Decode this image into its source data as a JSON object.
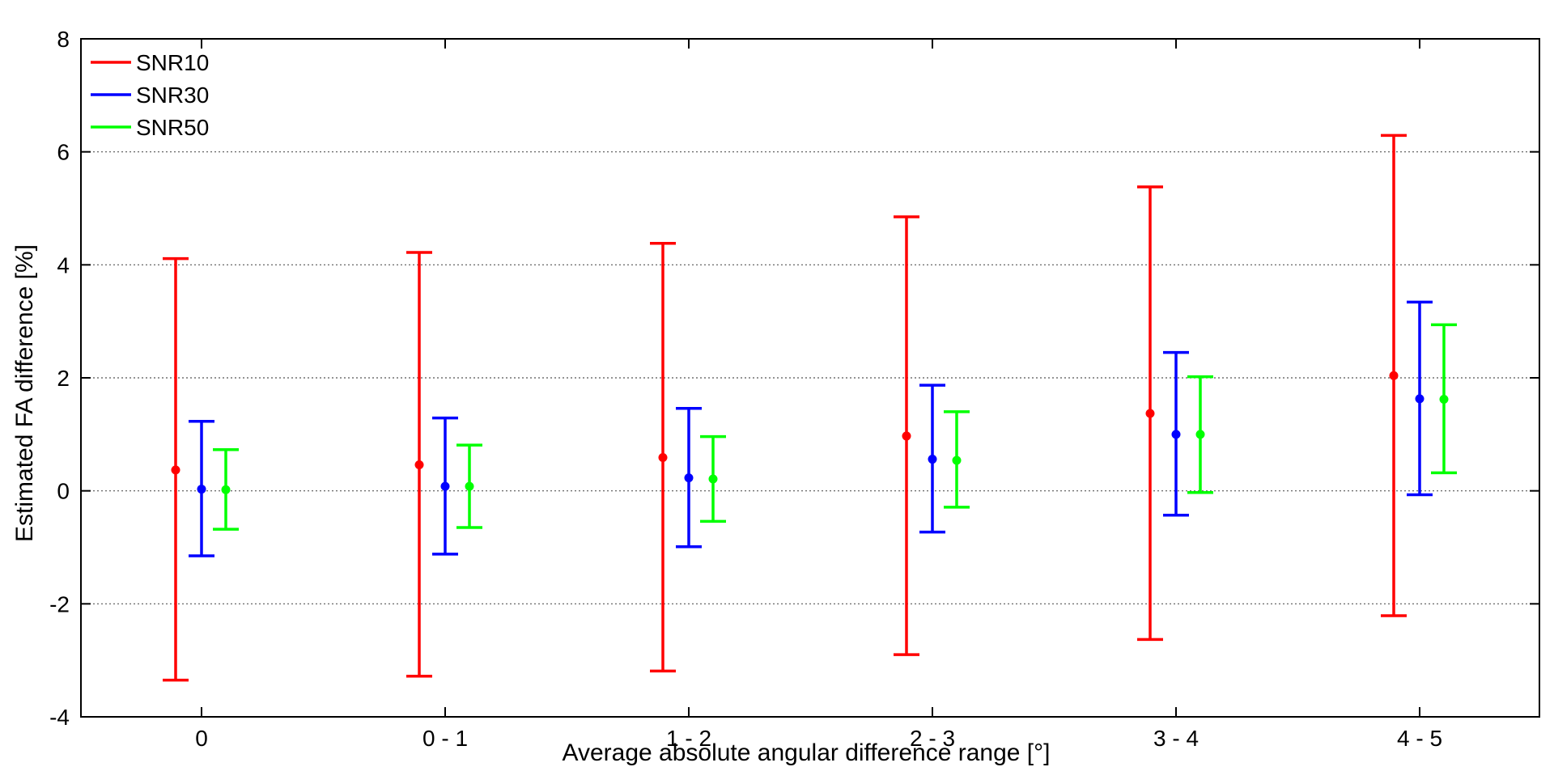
{
  "chart_data": {
    "type": "errorbar",
    "title": "",
    "xlabel": "Average absolute angular difference range [°]",
    "ylabel": "Estimated FA difference [%]",
    "ylim": [
      -4,
      8
    ],
    "yticks": [
      -4,
      -2,
      0,
      2,
      4,
      6,
      8
    ],
    "ytick_labels": [
      "-4",
      "-2",
      "0",
      "2",
      "4",
      "6",
      "8"
    ],
    "grid": "horizontal-dotted",
    "legend_position": "top-left",
    "categories": [
      "0",
      "0 - 1",
      "1 - 2",
      "2 - 3",
      "3 - 4",
      "4 - 5"
    ],
    "series": [
      {
        "name": "SNR10",
        "color": "#ff0000",
        "values": [
          0.37,
          0.46,
          0.59,
          0.97,
          1.37,
          2.04
        ],
        "lower": [
          -3.35,
          -3.28,
          -3.19,
          -2.9,
          -2.63,
          -2.21
        ],
        "upper": [
          4.11,
          4.22,
          4.38,
          4.85,
          5.38,
          6.29
        ]
      },
      {
        "name": "SNR30",
        "color": "#0000ff",
        "values": [
          0.03,
          0.08,
          0.23,
          0.56,
          1.0,
          1.63
        ],
        "lower": [
          -1.15,
          -1.12,
          -0.99,
          -0.73,
          -0.43,
          -0.07
        ],
        "upper": [
          1.23,
          1.29,
          1.46,
          1.87,
          2.45,
          3.34
        ]
      },
      {
        "name": "SNR50",
        "color": "#00ff00",
        "values": [
          0.02,
          0.08,
          0.21,
          0.54,
          1.0,
          1.62
        ],
        "lower": [
          -0.68,
          -0.65,
          -0.54,
          -0.29,
          -0.03,
          0.32
        ],
        "upper": [
          0.73,
          0.81,
          0.96,
          1.4,
          2.02,
          2.94
        ]
      }
    ]
  }
}
